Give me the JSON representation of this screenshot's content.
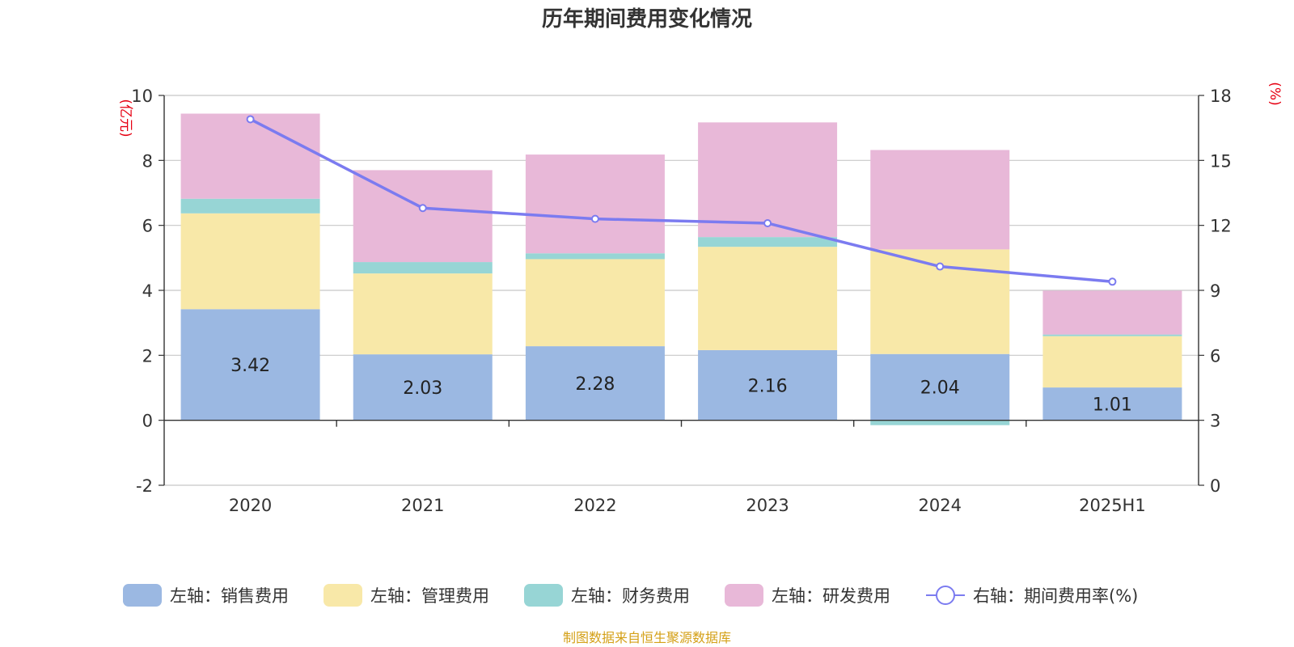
{
  "chart_data": {
    "type": "bar",
    "stacked": true,
    "title": "历年期间费用变化情况",
    "categories": [
      "2020",
      "2021",
      "2022",
      "2023",
      "2024",
      "2025H1"
    ],
    "left_axis": {
      "unit_label": "(亿元)",
      "ylim": [
        -2,
        10
      ],
      "ticks": [
        "10",
        "8",
        "6",
        "4",
        "2",
        "0",
        "-2"
      ]
    },
    "right_axis": {
      "unit_label": "(%)",
      "ylim": [
        0,
        18
      ],
      "ticks": [
        "18",
        "15",
        "12",
        "9",
        "6",
        "3",
        "0"
      ]
    },
    "series": [
      {
        "name": "左轴：销售费用",
        "axis": "left",
        "type": "bar",
        "color": "#9bb8e2",
        "values": [
          3.42,
          2.03,
          2.28,
          2.16,
          2.04,
          1.01
        ],
        "value_labels": [
          "3.42",
          "2.03",
          "2.28",
          "2.16",
          "2.04",
          "1.01"
        ]
      },
      {
        "name": "左轴：管理费用",
        "axis": "left",
        "type": "bar",
        "color": "#f8e8a8",
        "values": [
          2.95,
          2.49,
          2.68,
          3.18,
          3.22,
          1.58
        ]
      },
      {
        "name": "左轴：财务费用",
        "axis": "left",
        "type": "bar",
        "color": "#97d5d5",
        "values": [
          0.45,
          0.35,
          0.18,
          0.3,
          -0.15,
          0.05
        ]
      },
      {
        "name": "左轴：研发费用",
        "axis": "left",
        "type": "bar",
        "color": "#e8b8d8",
        "values": [
          2.62,
          2.83,
          3.04,
          3.53,
          3.06,
          1.35
        ]
      },
      {
        "name": "右轴：期间费用率(%)",
        "axis": "right",
        "type": "line",
        "color": "#7b7bf0",
        "values": [
          16.9,
          12.8,
          12.3,
          12.1,
          10.1,
          9.4
        ]
      }
    ],
    "grid": true,
    "legend": "bottom",
    "source_note": "制图数据来自恒生聚源数据库"
  }
}
